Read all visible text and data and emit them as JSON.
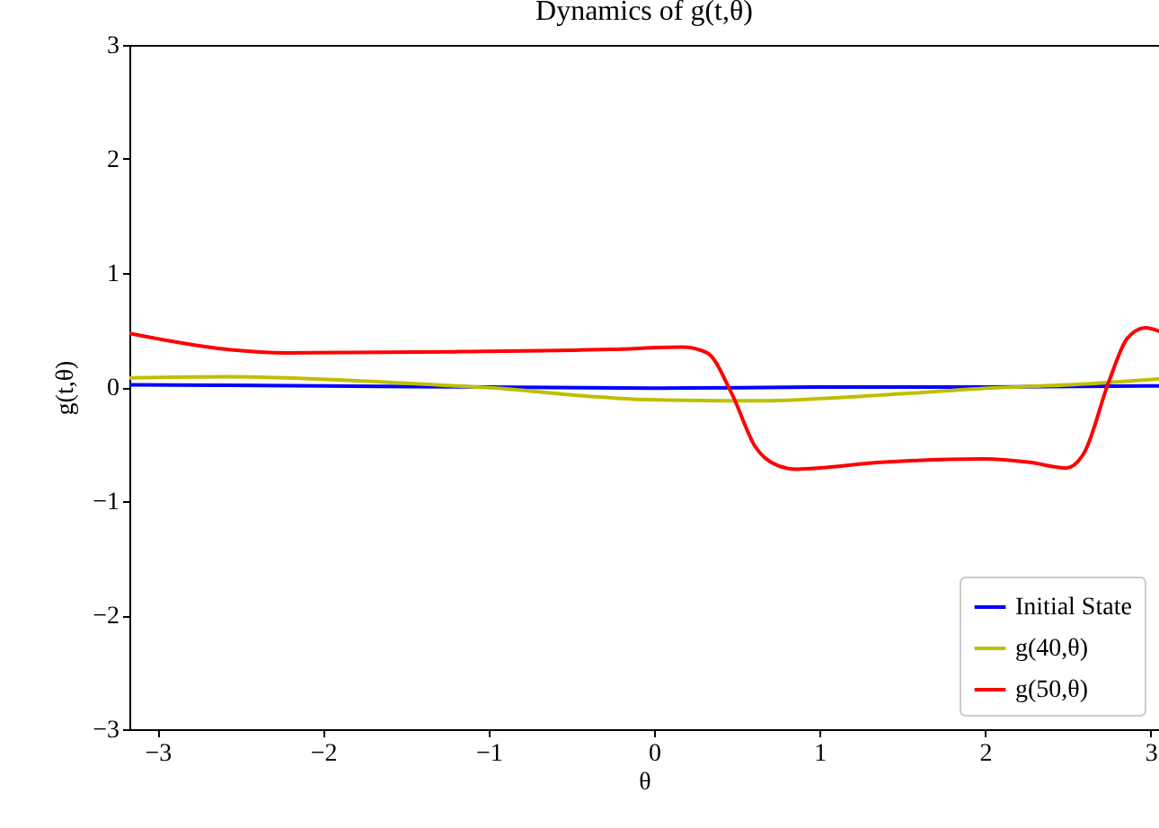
{
  "chart_data": {
    "type": "line",
    "title": "Dynamics of g(t,θ)",
    "xlabel": "θ",
    "ylabel": "g(t,θ)",
    "xlim": [
      -3.17,
      3.05
    ],
    "xticks": [
      -3,
      -2,
      -1,
      0,
      1,
      2,
      3
    ],
    "ylim": [
      -3,
      3
    ],
    "yticks": [
      -3,
      -2,
      -1,
      0,
      1,
      2,
      3
    ],
    "legend": "bottom right",
    "grid": false,
    "line_style": "solid",
    "marker": "none",
    "series": [
      {
        "name": "Initial State",
        "color": "#0000ff",
        "x": [
          -3.17,
          -2,
          -1,
          0,
          1,
          2,
          3.05
        ],
        "values": [
          0.02,
          0.01,
          0,
          -0.01,
          0,
          0,
          0.01
        ]
      },
      {
        "name": "g(40,θ)",
        "color": "#bfbf00",
        "x": [
          -3.17,
          -2.58,
          -1.86,
          -1.32,
          -0.95,
          -0.4,
          -0.04,
          0.64,
          1.37,
          2.02,
          2.64,
          3.05
        ],
        "values": [
          0.08,
          0.09,
          0.06,
          0.02,
          -0.01,
          -0.08,
          -0.11,
          -0.12,
          -0.07,
          -0.01,
          0.03,
          0.07
        ]
      },
      {
        "name": "g(50,θ)",
        "color": "#ff0000",
        "x": [
          -3.17,
          -2.58,
          -2.22,
          -1.2,
          -0.26,
          0.17,
          0.32,
          0.47,
          0.61,
          0.75,
          0.86,
          1.37,
          1.99,
          2.27,
          2.49,
          2.6,
          2.75,
          2.86,
          2.97,
          3.05
        ],
        "values": [
          0.47,
          0.33,
          0.3,
          0.31,
          0.33,
          0.35,
          0.3,
          -0.06,
          -0.52,
          -0.69,
          -0.72,
          -0.66,
          -0.63,
          -0.66,
          -0.71,
          -0.57,
          0.06,
          0.43,
          0.52,
          0.49
        ]
      }
    ]
  }
}
